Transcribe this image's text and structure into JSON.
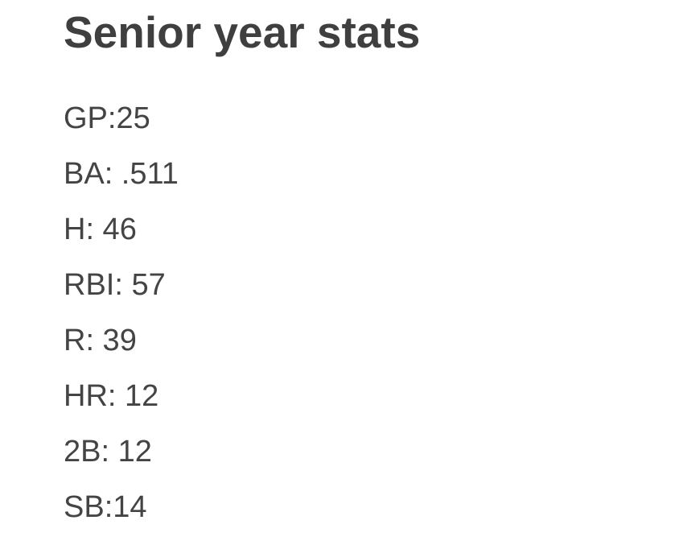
{
  "title": "Senior year stats",
  "lines": [
    "GP:25",
    "BA: .511",
    "H: 46",
    "RBI: 57",
    "R: 39",
    "HR: 12",
    "2B: 12",
    "SB:14"
  ]
}
